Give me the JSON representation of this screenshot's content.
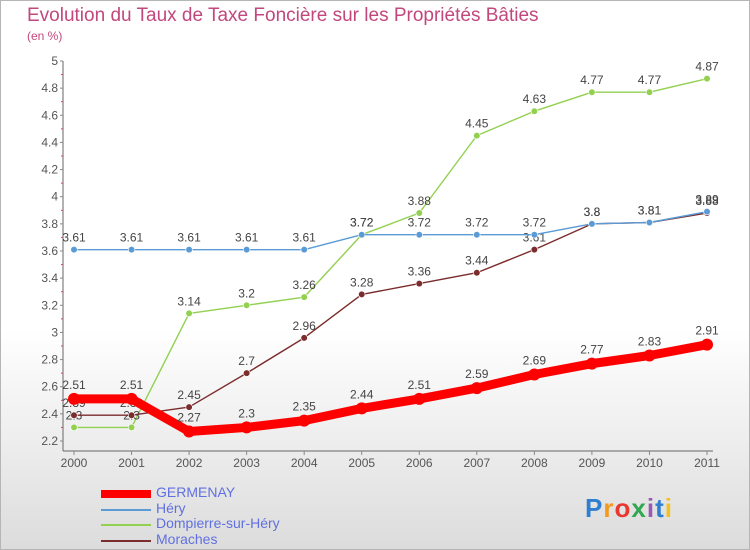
{
  "title": "Evolution du Taux de Taxe Foncière sur les Propriétés Bâties",
  "subtitle": "(en %)",
  "logo": "Proxiti",
  "chart_data": {
    "type": "line",
    "categories": [
      "2000",
      "2001",
      "2002",
      "2003",
      "2004",
      "2005",
      "2006",
      "2007",
      "2008",
      "2009",
      "2010",
      "2011"
    ],
    "ylim": [
      2.2,
      5
    ],
    "yticks": [
      "2.2",
      "2.4",
      "2.6",
      "2.8",
      "3",
      "3.2",
      "3.4",
      "3.6",
      "3.8",
      "4",
      "4.2",
      "4.4",
      "4.6",
      "4.8",
      "5"
    ],
    "grid": false,
    "legend": "bottom-left",
    "series": [
      {
        "name": "GERMENAY",
        "color": "#ff0000",
        "values": [
          2.51,
          2.51,
          2.27,
          2.3,
          2.35,
          2.44,
          2.51,
          2.59,
          2.69,
          2.77,
          2.83,
          2.91
        ],
        "labels": [
          "2.51",
          "2.51",
          "2.27",
          "2.3",
          "2.35",
          "2.44",
          "2.51",
          "2.59",
          "2.69",
          "2.77",
          "2.83",
          "2.91"
        ]
      },
      {
        "name": "Héry",
        "color": "#5b9bd5",
        "values": [
          3.61,
          3.61,
          3.61,
          3.61,
          3.61,
          3.72,
          3.72,
          3.72,
          3.72,
          3.8,
          3.81,
          3.89
        ],
        "labels": [
          "3.61",
          "3.61",
          "3.61",
          "3.61",
          "3.61",
          "3.72",
          "3.72",
          "3.72",
          "3.72",
          "3.8",
          "3.81",
          "3.89"
        ]
      },
      {
        "name": "Dompierre-sur-Héry",
        "color": "#92d050",
        "values": [
          2.3,
          2.3,
          3.14,
          3.2,
          3.26,
          3.72,
          3.88,
          4.45,
          4.63,
          4.77,
          4.77,
          4.87
        ],
        "labels": [
          "2.3",
          "2.3",
          "3.14",
          "3.2",
          "3.26",
          "3.72",
          "3.88",
          "4.45",
          "4.63",
          "4.77",
          "4.77",
          "4.87"
        ]
      },
      {
        "name": "Moraches",
        "color": "#7b2c2c",
        "values": [
          2.39,
          2.39,
          2.45,
          2.7,
          2.96,
          3.28,
          3.36,
          3.44,
          3.61,
          3.8,
          3.81,
          3.88
        ],
        "labels": [
          "2.39",
          "2.39",
          "2.45",
          "2.7",
          "2.96",
          "3.28",
          "3.36",
          "3.44",
          "3.61",
          "3.8",
          "3.81",
          "3.88"
        ]
      }
    ]
  }
}
